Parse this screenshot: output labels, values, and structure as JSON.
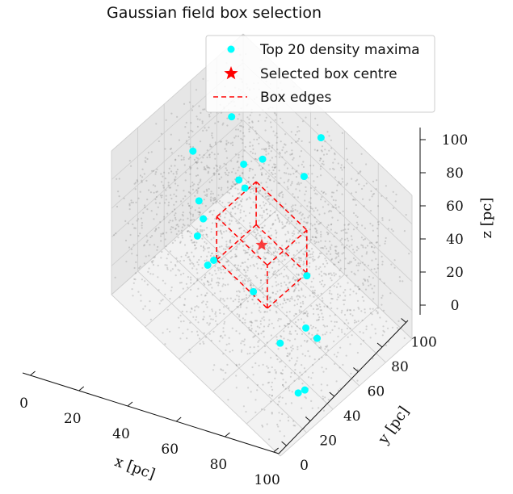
{
  "chart_data": {
    "type": "scatter",
    "projection": "3d",
    "title": "Gaussian field box selection",
    "xlabel": "x [pc]",
    "ylabel": "y [pc]",
    "zlabel": "z [pc]",
    "xlim": [
      0,
      100
    ],
    "ylim": [
      0,
      100
    ],
    "zlim": [
      0,
      100
    ],
    "xticks": [
      "0",
      "20",
      "40",
      "60",
      "80",
      "100"
    ],
    "yticks": [
      "0",
      "20",
      "40",
      "60",
      "80",
      "100"
    ],
    "zticks": [
      "0",
      "20",
      "40",
      "60",
      "80",
      "100"
    ],
    "grid": true,
    "legend_position": "top-right",
    "background_points": {
      "description_count": 2600,
      "color": "#555555",
      "seed": 7
    },
    "series": [
      {
        "name": "Top 20 density maxima",
        "marker": "circle",
        "color": "#00ffff",
        "points": [
          {
            "x": 31,
            "y": 75,
            "z": 68
          },
          {
            "x": 50,
            "y": 95,
            "z": 88
          },
          {
            "x": 47,
            "y": 86,
            "z": 65
          },
          {
            "x": 12,
            "y": 85,
            "z": 35
          },
          {
            "x": 26,
            "y": 68,
            "z": 48
          },
          {
            "x": 24,
            "y": 66,
            "z": 53
          },
          {
            "x": 3,
            "y": 58,
            "z": 56
          },
          {
            "x": 5,
            "y": 60,
            "z": 22
          },
          {
            "x": 6,
            "y": 62,
            "z": 9
          },
          {
            "x": 8,
            "y": 55,
            "z": 5
          },
          {
            "x": 20,
            "y": 52,
            "z": 4
          },
          {
            "x": 18,
            "y": 50,
            "z": 0
          },
          {
            "x": 58,
            "y": 74,
            "z": 18
          },
          {
            "x": 75,
            "y": 60,
            "z": 5
          },
          {
            "x": 80,
            "y": 45,
            "z": 30
          },
          {
            "x": 95,
            "y": 25,
            "z": 20
          },
          {
            "x": 95,
            "y": 20,
            "z": 22
          },
          {
            "x": 96,
            "y": 5,
            "z": 70
          },
          {
            "x": 15,
            "y": 72,
            "z": 82
          },
          {
            "x": 70,
            "y": 18,
            "z": 66
          }
        ]
      },
      {
        "name": "Selected box centre",
        "marker": "star",
        "color": "#ff0000",
        "points": [
          {
            "x": 50,
            "y": 50,
            "z": 50
          }
        ]
      },
      {
        "name": "Box edges",
        "marker": "dashed-line",
        "color": "#ff0000",
        "box": {
          "x": [
            35,
            65
          ],
          "y": [
            35,
            65
          ],
          "z": [
            35,
            65
          ]
        }
      }
    ]
  }
}
